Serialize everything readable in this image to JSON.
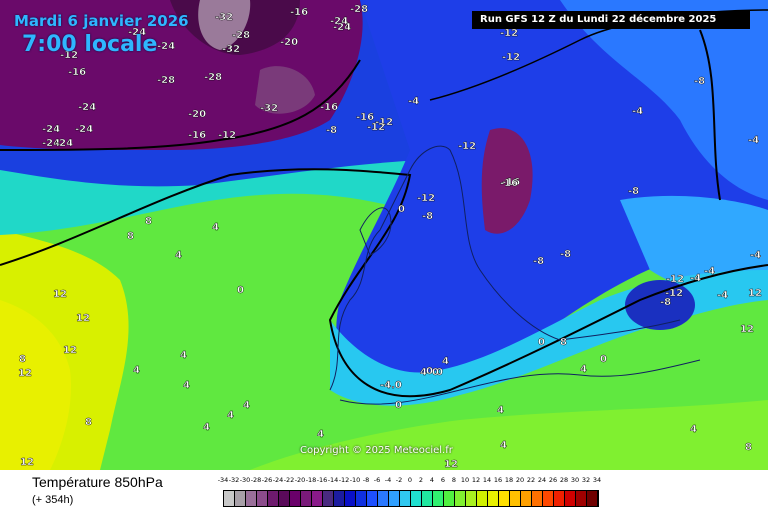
{
  "header": {
    "date": "Mardi 6 janvier 2026",
    "time": "7:00 locale",
    "run": "Run GFS 12 Z du Lundi 22 décembre 2025"
  },
  "copyright": "Copyright © 2025 Meteociel.fr",
  "legend": {
    "title": "Température 850hPa",
    "lead_time": "(+ 354h)",
    "ticks": [
      "-34",
      "-32",
      "-30",
      "-28",
      "-26",
      "-24",
      "-22",
      "-20",
      "-18",
      "-16",
      "-14",
      "-12",
      "-10",
      "-8",
      "-6",
      "-4",
      "-2",
      "0",
      "2",
      "4",
      "6",
      "8",
      "10",
      "12",
      "14",
      "16",
      "18",
      "20",
      "22",
      "24",
      "26",
      "28",
      "30",
      "32",
      "34"
    ],
    "colors": [
      "#c8c8c8",
      "#a8a0a8",
      "#9a6f9a",
      "#8c4c8c",
      "#6e1a6e",
      "#5a0a5a",
      "#6a006a",
      "#7a1a7a",
      "#8a1a8a",
      "#4a2a80",
      "#1c1ca0",
      "#0a10c8",
      "#1030e0",
      "#1e50ff",
      "#2a78ff",
      "#30a0ff",
      "#30c8f0",
      "#20e0d0",
      "#20e8a0",
      "#30f070",
      "#50f040",
      "#80f030",
      "#a8f020",
      "#d0f000",
      "#e8f000",
      "#ffe000",
      "#ffc000",
      "#ffa000",
      "#ff7000",
      "#ff4800",
      "#f02000",
      "#d00000",
      "#a00000",
      "#700000"
    ]
  },
  "map_labels": [
    "-32",
    "-16",
    "-28",
    "-24",
    "-24",
    "-24",
    "-28",
    "-32",
    "-20",
    "-24",
    "-12",
    "-12",
    "-16",
    "-28",
    "-28",
    "-24",
    "-24",
    "-24",
    "-24",
    "-24",
    "-20",
    "-16",
    "-12",
    "-32",
    "-8",
    "-16",
    "-16",
    "-12",
    "-12",
    "-4",
    "-12",
    "-16",
    "-8",
    "-8",
    "-12",
    "-4",
    "-8",
    "-8",
    "-8",
    "-12",
    "-12",
    "-8",
    "-4",
    "-4",
    "-4",
    "-4",
    "-4",
    "-12",
    "-16",
    "0",
    "4",
    "4",
    "8",
    "4",
    "8",
    "4",
    "0",
    "4",
    "4",
    "8",
    "12",
    "12",
    "12",
    "12",
    "12",
    "12",
    "8",
    "4",
    "4",
    "4",
    "4",
    "0",
    "4",
    "8",
    "0",
    "0",
    "4",
    "4",
    "12",
    "0",
    "0",
    "-4.0",
    "0",
    "4",
    "4",
    "8",
    "12"
  ]
}
